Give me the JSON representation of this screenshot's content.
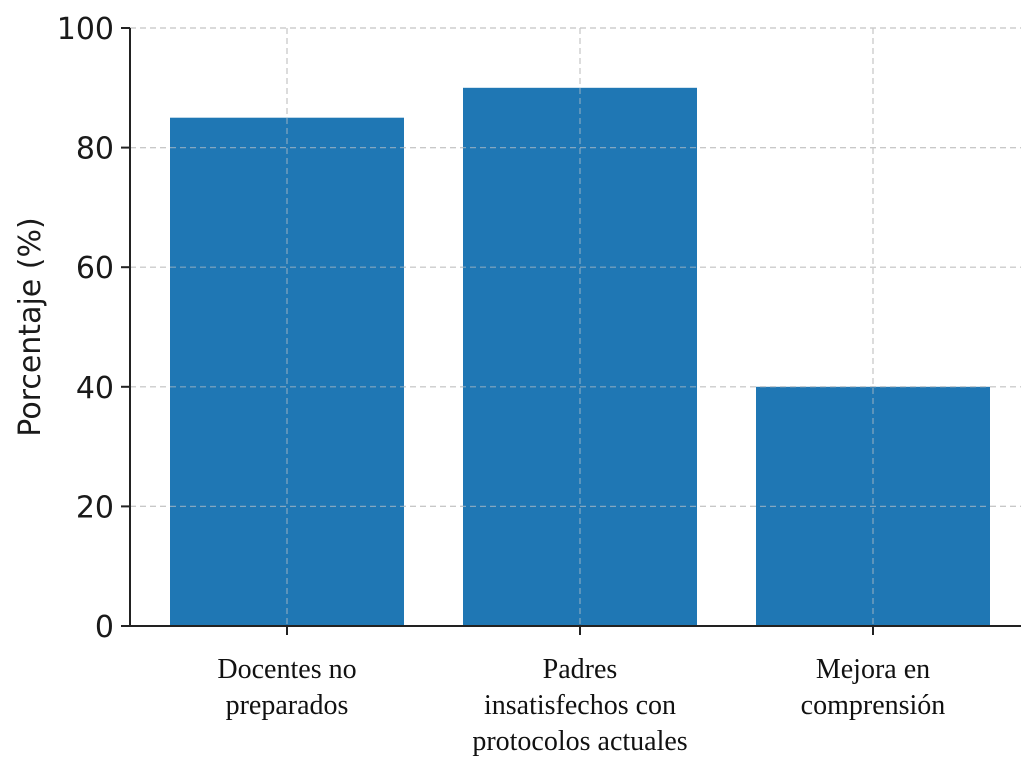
{
  "chart_data": {
    "type": "bar",
    "categories": [
      [
        "Docentes no",
        "preparados"
      ],
      [
        "Padres",
        "insatisfechos con",
        "protocolos actuales"
      ],
      [
        "Mejora en",
        "comprensión"
      ]
    ],
    "values": [
      85,
      90,
      40
    ],
    "ylabel": "Porcentaje (%)",
    "ylim": [
      0,
      100
    ],
    "yticks": [
      0,
      20,
      40,
      60,
      80,
      100
    ],
    "grid": true,
    "bar_color": "#1f77b4"
  }
}
